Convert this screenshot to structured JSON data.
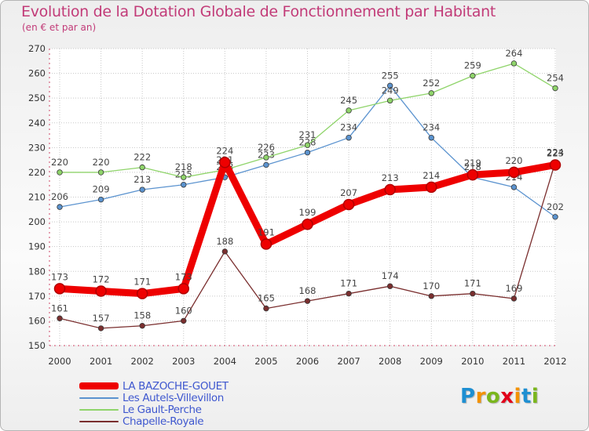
{
  "header": {
    "title": "Evolution de la Dotation Globale de Fonctionnement par Habitant",
    "subtitle": "(en € et par an)"
  },
  "colors": {
    "title": "#c23b78",
    "axis_text": "#333333",
    "legend_text": "#3f58cf",
    "grid": "#c8c8c8"
  },
  "logo": {
    "text": "Proxiti",
    "letters": [
      {
        "ch": "P",
        "color": "#1e8fd2"
      },
      {
        "ch": "r",
        "color": "#f39200"
      },
      {
        "ch": "o",
        "color": "#7ab61d"
      },
      {
        "ch": "x",
        "color": "#e2001a"
      },
      {
        "ch": "i",
        "color": "#f39200"
      },
      {
        "ch": "t",
        "color": "#1e8fd2"
      },
      {
        "ch": "i",
        "color": "#7ab61d"
      }
    ]
  },
  "chart_data": {
    "type": "line",
    "title": "Evolution de la Dotation Globale de Fonctionnement par Habitant",
    "subtitle": "(en € et par an)",
    "xlabel": "",
    "ylabel": "",
    "x": [
      "2000",
      "2001",
      "2002",
      "2003",
      "2004",
      "2005",
      "2006",
      "2007",
      "2008",
      "2009",
      "2010",
      "2011",
      "2012"
    ],
    "yticks": [
      150,
      160,
      170,
      180,
      190,
      200,
      210,
      220,
      230,
      240,
      250,
      260,
      270
    ],
    "ylim": [
      150,
      270
    ],
    "grid": true,
    "legend": "bottom-left",
    "series": [
      {
        "name": "Les Autels-Villevillon",
        "color": "#5b93cf",
        "emphasis": false,
        "values": [
          206,
          209,
          213,
          215,
          218,
          223,
          228,
          234,
          255,
          234,
          218,
          214,
          202
        ],
        "labels": [
          "206",
          "209",
          "213",
          "215",
          "218",
          "223",
          "228",
          "234",
          "255",
          "234",
          "218",
          "214",
          "202"
        ]
      },
      {
        "name": "Le Gault-Perche",
        "color": "#8fd46a",
        "emphasis": false,
        "values": [
          220,
          220,
          222,
          218,
          221,
          226,
          231,
          245,
          249,
          252,
          259,
          264,
          254
        ],
        "labels": [
          "220",
          "220",
          "222",
          "218",
          "221",
          "226",
          "231",
          "245",
          "249",
          "252",
          "259",
          "264",
          "254"
        ]
      },
      {
        "name": "Chapelle-Royale",
        "color": "#7a2e2e",
        "emphasis": false,
        "values": [
          161,
          157,
          158,
          160,
          188,
          165,
          168,
          171,
          174,
          170,
          171,
          169,
          224
        ],
        "labels": [
          "161",
          "157",
          "158",
          "160",
          "188",
          "165",
          "168",
          "171",
          "174",
          "170",
          "171",
          "169",
          "224"
        ]
      },
      {
        "name": "LA BAZOCHE-GOUET",
        "color": "#ee0000",
        "emphasis": true,
        "values": [
          173,
          172,
          171,
          173,
          224,
          191,
          199,
          207,
          213,
          214,
          219,
          220,
          223
        ],
        "labels": [
          "173",
          "172",
          "171",
          "173",
          "224",
          "191",
          "199",
          "207",
          "213",
          "214",
          "219",
          "220",
          "223"
        ]
      }
    ],
    "legend_order": [
      "LA BAZOCHE-GOUET",
      "Les Autels-Villevillon",
      "Le Gault-Perche",
      "Chapelle-Royale"
    ]
  }
}
